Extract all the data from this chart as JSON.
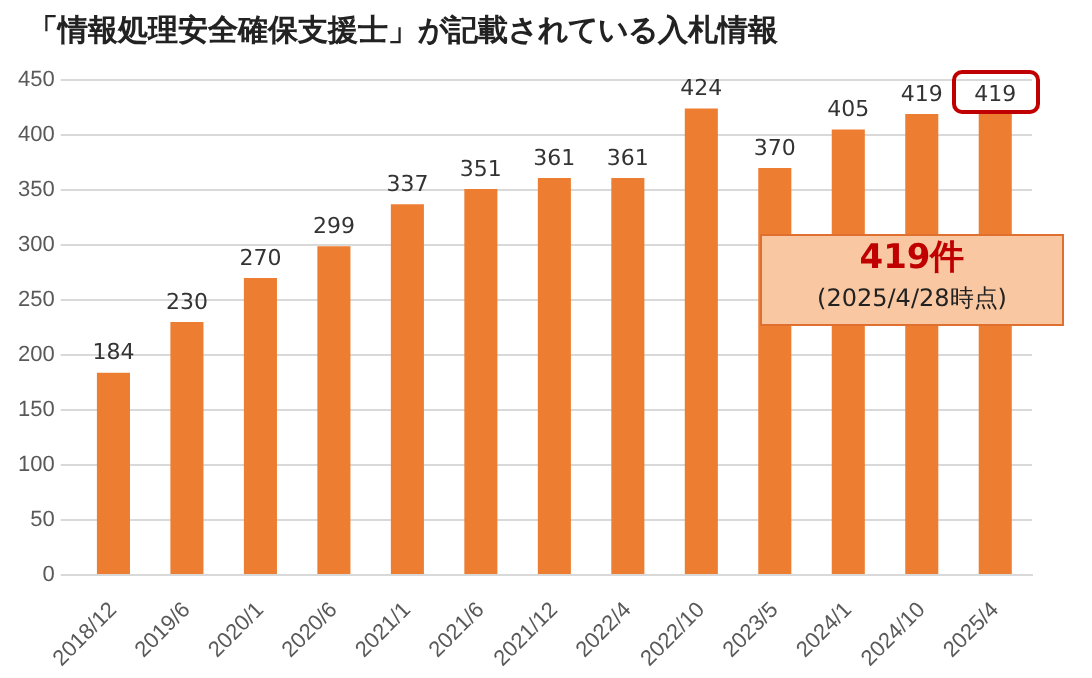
{
  "chart_data": {
    "type": "bar",
    "title": "「情報処理安全確保支援士」が記載されている入札情報",
    "categories": [
      "2018/12",
      "2019/6",
      "2020/1",
      "2020/6",
      "2021/1",
      "2021/6",
      "2021/12",
      "2022/4",
      "2022/10",
      "2023/5",
      "2024/1",
      "2024/10",
      "2025/4"
    ],
    "values": [
      184,
      230,
      270,
      299,
      337,
      351,
      361,
      361,
      424,
      370,
      405,
      419,
      419
    ],
    "color": "#ed7d31",
    "ylim": [
      0,
      450
    ],
    "yticks": [
      0,
      50,
      100,
      150,
      200,
      250,
      300,
      350,
      400,
      450
    ],
    "grid": "y",
    "data_labels": true,
    "annotations": [
      "419件",
      "(2025/4/28時点)"
    ]
  }
}
